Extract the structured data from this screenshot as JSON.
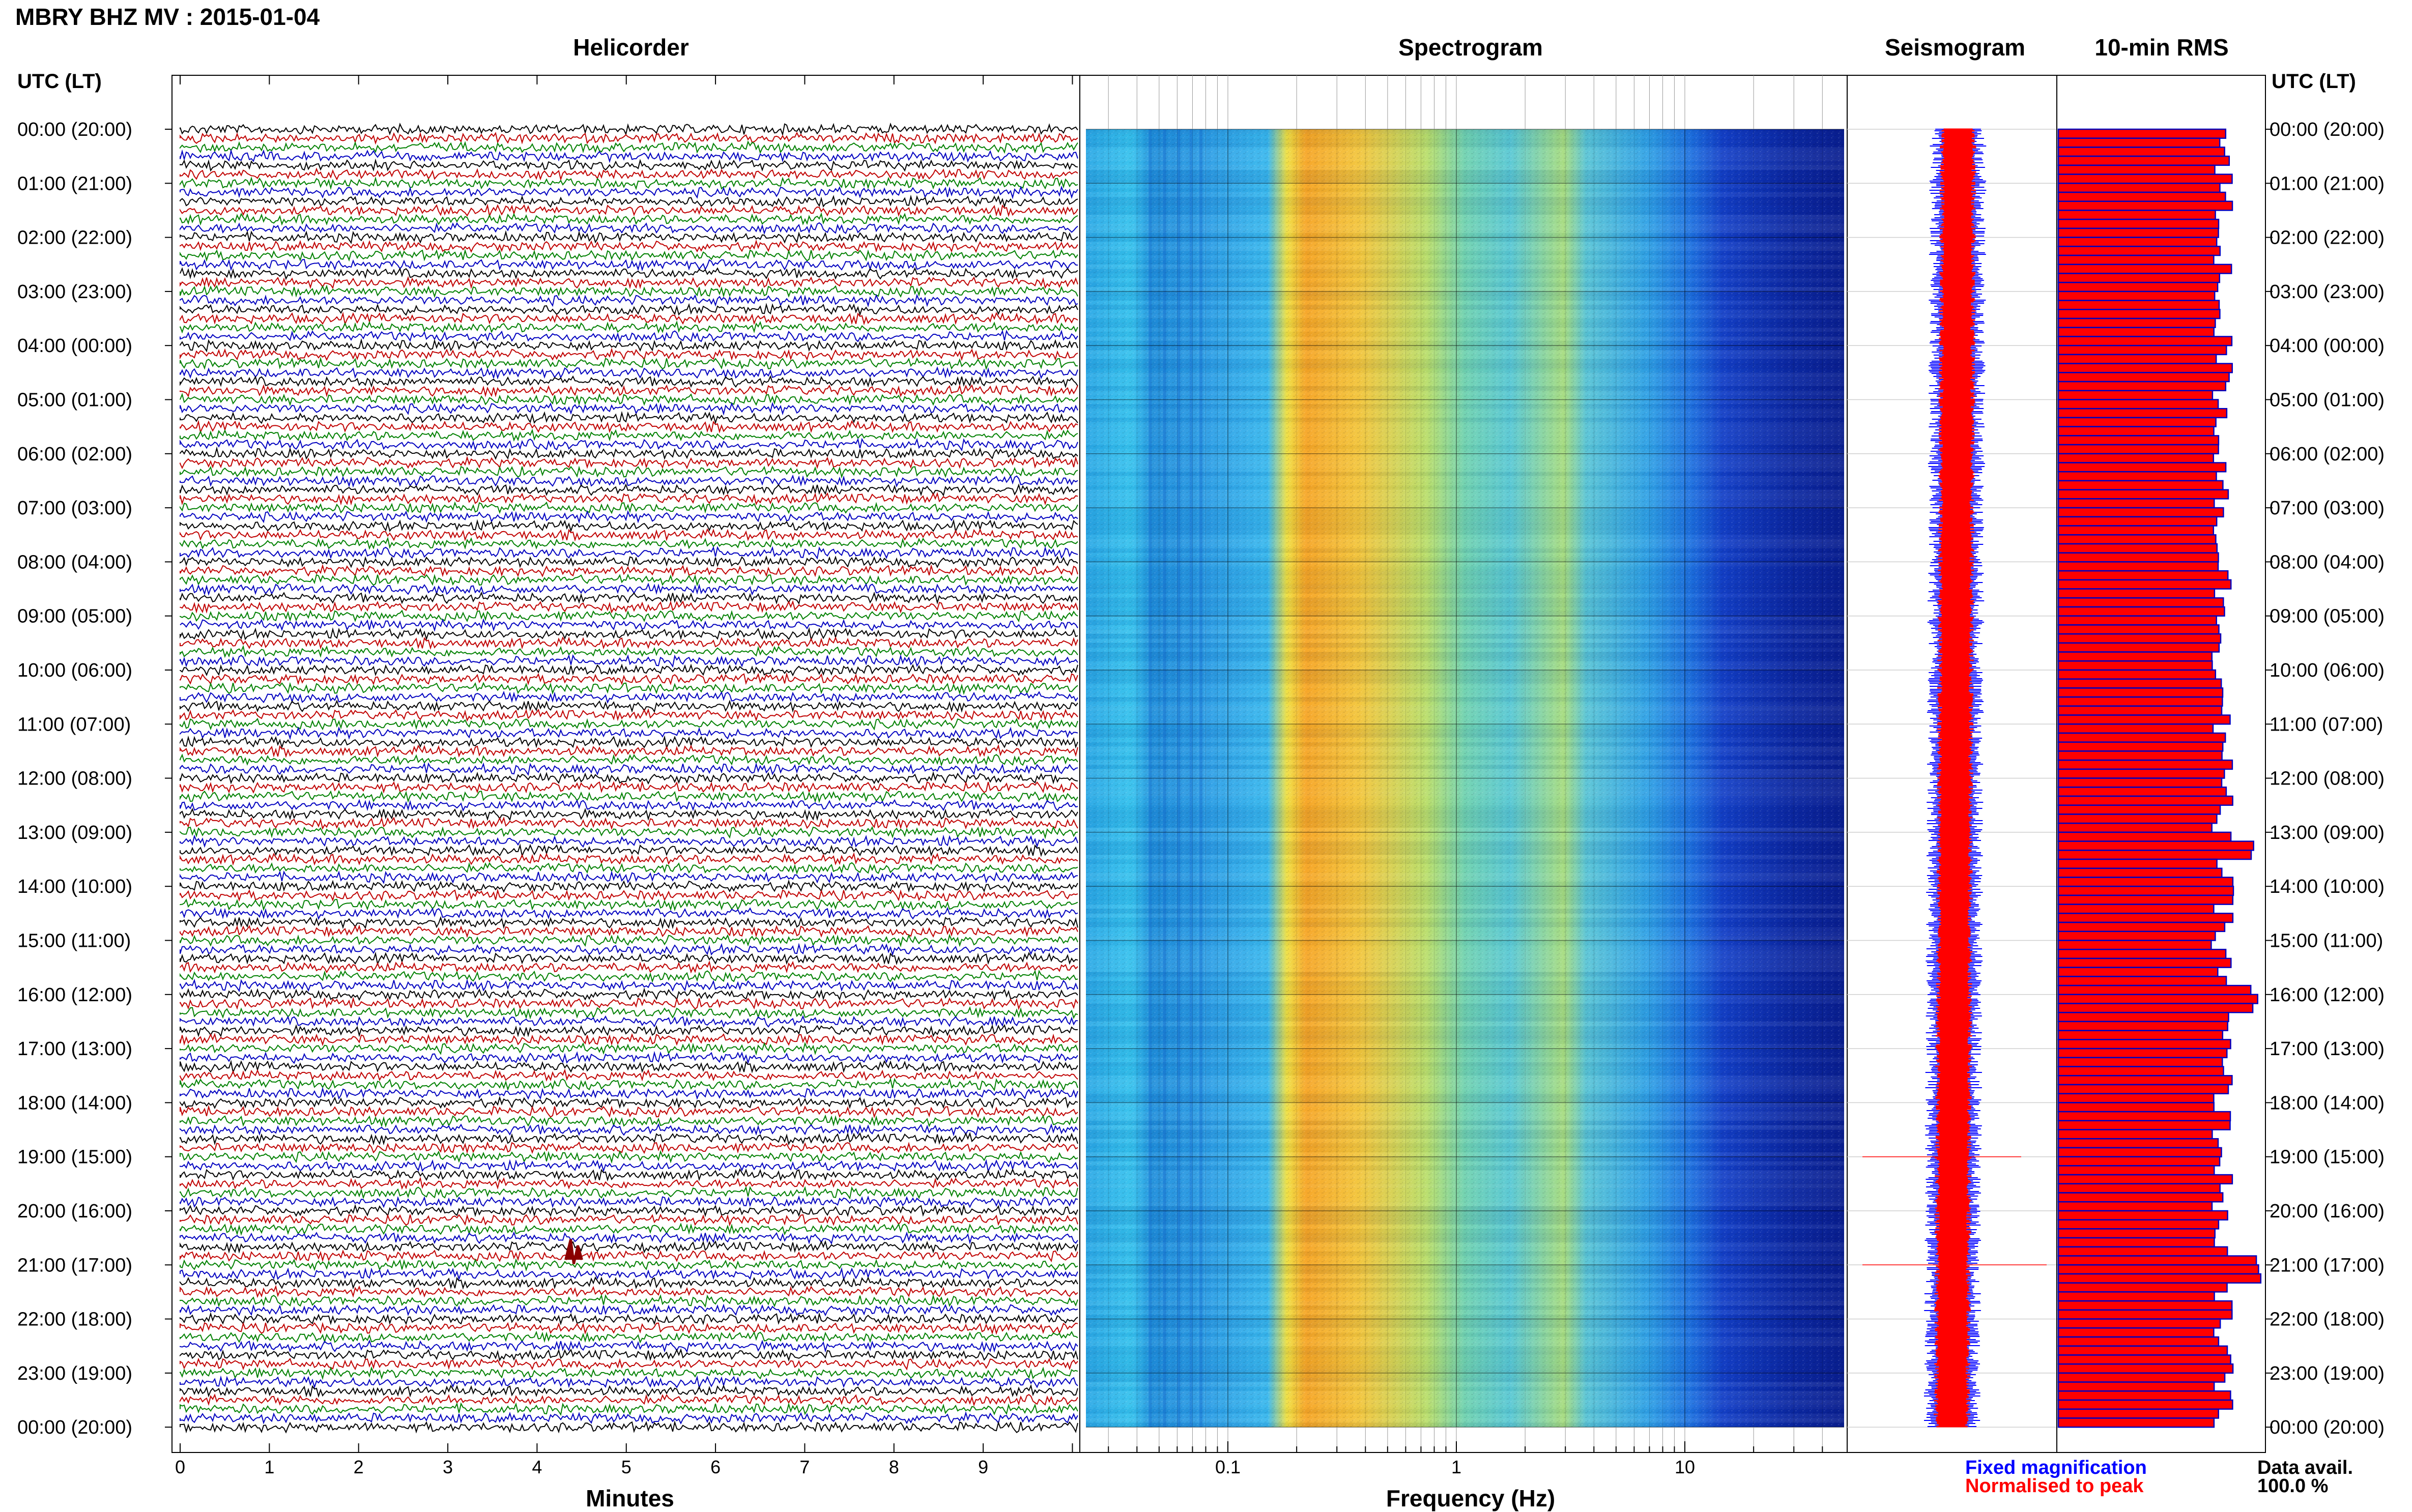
{
  "header": {
    "title": "MBRY BHZ MV : 2015-01-04",
    "utc_label_left": "UTC (LT)",
    "utc_label_right": "UTC (LT)"
  },
  "panels": {
    "helicorder": "Helicorder",
    "spectrogram": "Spectrogram",
    "seismogram": "Seismogram",
    "rms": "10-min RMS"
  },
  "axes": {
    "helicorder_xlabel": "Minutes",
    "spectrogram_xlabel": "Frequency (Hz)"
  },
  "legend": {
    "fixed": "Fixed magnification",
    "normalised": "Normalised to peak",
    "fixed_color": "#0000ff",
    "normalised_color": "#ff0000"
  },
  "data_availability": {
    "label": "Data avail.",
    "value": "100.0 %"
  },
  "trace_colors": [
    "#000000",
    "#c00000",
    "#008000",
    "#0000c0"
  ],
  "chart_data": [
    {
      "type": "line",
      "panel": "helicorder",
      "x_ticks": [
        "0",
        "1",
        "2",
        "3",
        "4",
        "5",
        "6",
        "7",
        "8",
        "9"
      ],
      "xlim": [
        0,
        10
      ],
      "row_labels": [
        "00:00 (20:00)",
        "01:00 (21:00)",
        "02:00 (22:00)",
        "03:00 (23:00)",
        "04:00 (00:00)",
        "05:00 (01:00)",
        "06:00 (02:00)",
        "07:00 (03:00)",
        "08:00 (04:00)",
        "09:00 (05:00)",
        "10:00 (06:00)",
        "11:00 (07:00)",
        "12:00 (08:00)",
        "13:00 (09:00)",
        "14:00 (10:00)",
        "15:00 (11:00)",
        "16:00 (12:00)",
        "17:00 (13:00)",
        "18:00 (14:00)",
        "19:00 (15:00)",
        "20:00 (16:00)",
        "21:00 (17:00)",
        "22:00 (18:00)",
        "23:00 (19:00)",
        "00:00 (20:00)"
      ],
      "traces_per_hour": 6,
      "events": [
        {
          "hour": 21,
          "minute": 4.4,
          "label": ""
        }
      ]
    },
    {
      "type": "heatmap",
      "panel": "spectrogram",
      "x_scale": "log",
      "xlim": [
        0.02,
        50
      ],
      "x_ticks": [
        "0.1",
        "1",
        "10"
      ],
      "band_peak_hz": [
        0.2,
        0.35
      ],
      "secondary_peak_hz": 3.5
    },
    {
      "type": "line",
      "panel": "seismogram",
      "series": [
        {
          "name": "Fixed magnification",
          "color": "#0000ff"
        },
        {
          "name": "Normalised to peak",
          "color": "#ff0000"
        }
      ],
      "spikes_hour": [
        19,
        21
      ]
    },
    {
      "type": "bar",
      "panel": "10-min RMS",
      "orientation": "horizontal",
      "bins": 144,
      "note_spike_hours": [
        13.2,
        16,
        21
      ]
    }
  ]
}
